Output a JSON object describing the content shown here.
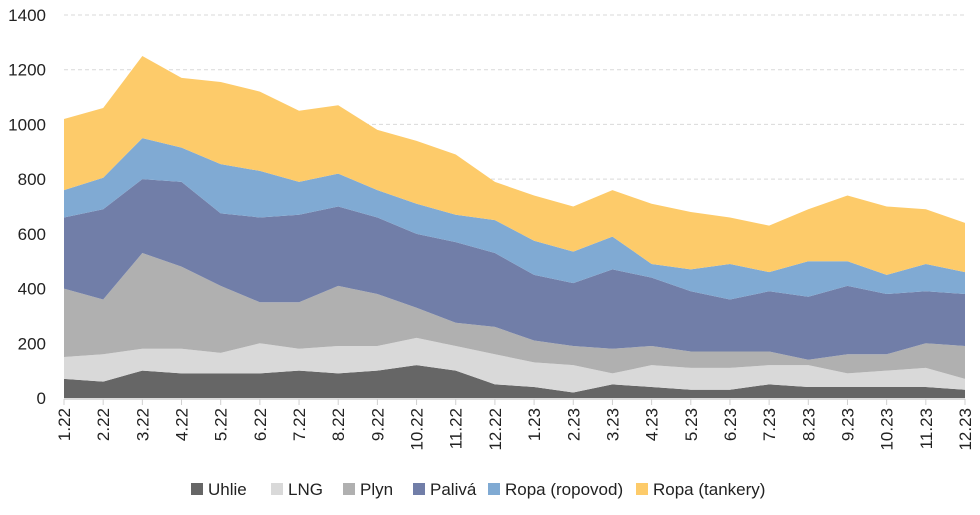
{
  "chart_data": {
    "type": "area",
    "stacked": true,
    "title": "",
    "xlabel": "",
    "ylabel": "",
    "ylim": [
      0,
      1400
    ],
    "yticks": [
      0,
      200,
      400,
      600,
      800,
      1000,
      1200,
      1400
    ],
    "grid": true,
    "legend": "bottom",
    "categories": [
      "1.22",
      "2.22",
      "3.22",
      "4.22",
      "5.22",
      "6.22",
      "7.22",
      "8.22",
      "9.22",
      "10.22",
      "11.22",
      "12.22",
      "1.23",
      "2.23",
      "3.23",
      "4.23",
      "5.23",
      "6.23",
      "7.23",
      "8.23",
      "9.23",
      "10.23",
      "11.23",
      "12.23"
    ],
    "series": [
      {
        "name": "Uhlie",
        "color": "#666666",
        "values": [
          70,
          60,
          100,
          90,
          90,
          90,
          100,
          90,
          100,
          120,
          100,
          50,
          40,
          20,
          50,
          40,
          30,
          30,
          50,
          40,
          40,
          40,
          40,
          30
        ]
      },
      {
        "name": "LNG",
        "color": "#d9d9d9",
        "values": [
          80,
          100,
          80,
          90,
          75,
          110,
          80,
          100,
          90,
          100,
          90,
          110,
          90,
          100,
          40,
          80,
          80,
          80,
          70,
          80,
          50,
          60,
          70,
          40
        ]
      },
      {
        "name": "Plyn",
        "color": "#b0b0b0",
        "values": [
          250,
          200,
          350,
          300,
          245,
          150,
          170,
          220,
          190,
          110,
          85,
          100,
          80,
          70,
          90,
          70,
          60,
          60,
          50,
          20,
          70,
          60,
          90,
          120
        ]
      },
      {
        "name": "Palivá",
        "color": "#717ea8",
        "values": [
          260,
          330,
          270,
          310,
          265,
          310,
          320,
          290,
          280,
          270,
          295,
          270,
          240,
          230,
          290,
          250,
          220,
          190,
          220,
          230,
          250,
          220,
          190,
          190
        ]
      },
      {
        "name": "Ropa (ropovod)",
        "color": "#80aad3",
        "values": [
          100,
          115,
          150,
          125,
          180,
          170,
          120,
          120,
          100,
          110,
          100,
          120,
          125,
          115,
          120,
          50,
          80,
          130,
          70,
          130,
          90,
          70,
          100,
          80
        ]
      },
      {
        "name": "Ropa (tankery)",
        "color": "#fdcb6a",
        "values": [
          260,
          255,
          300,
          255,
          300,
          290,
          260,
          250,
          220,
          230,
          220,
          140,
          165,
          165,
          170,
          220,
          210,
          170,
          170,
          190,
          240,
          250,
          200,
          180
        ]
      }
    ]
  }
}
